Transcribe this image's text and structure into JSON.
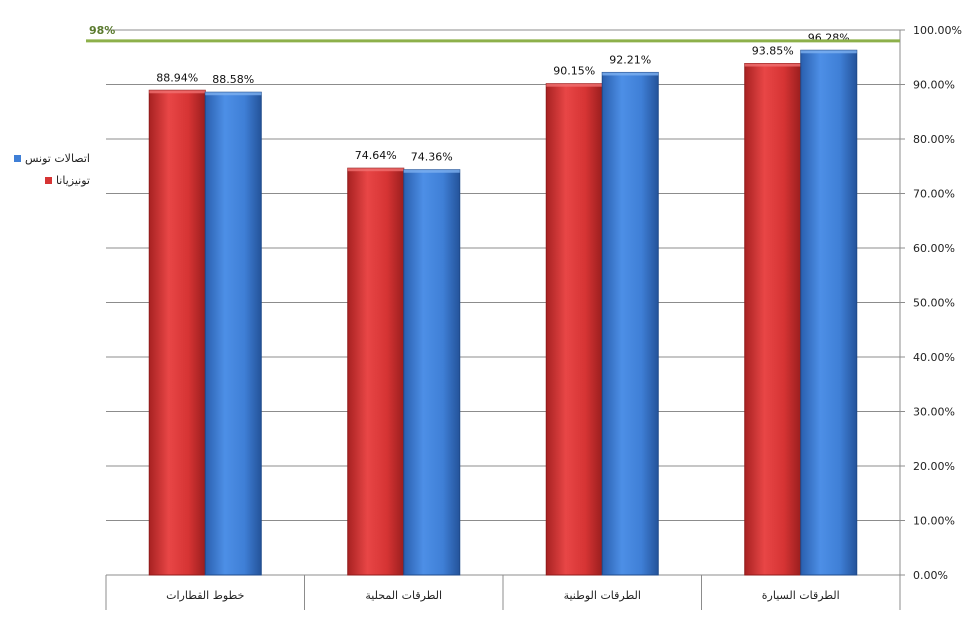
{
  "chart_data": {
    "type": "bar",
    "categories": [
      "خطوط القطارات",
      "الطرقات المحلية",
      "الطرقات الوطنية",
      "الطرقات السيارة"
    ],
    "series": [
      {
        "name": "تونيزيانا",
        "color": "#d63434",
        "values": [
          88.94,
          74.64,
          90.15,
          93.85
        ],
        "labels": [
          "88.94%",
          "74.64%",
          "90.15%",
          "93.85%"
        ]
      },
      {
        "name": "اتصالات تونس",
        "color": "#3f7fd6",
        "values": [
          88.58,
          74.36,
          92.21,
          96.28
        ],
        "labels": [
          "88.58%",
          "74.36%",
          "92.21%",
          "96.28%"
        ]
      }
    ],
    "yaxis": {
      "position": "right",
      "ticks": [
        0,
        10,
        20,
        30,
        40,
        50,
        60,
        70,
        80,
        90,
        100
      ],
      "tick_labels": [
        "0.00%",
        "10.00%",
        "20.00%",
        "30.00%",
        "40.00%",
        "50.00%",
        "60.00%",
        "70.00%",
        "80.00%",
        "90.00%",
        "100.00%"
      ],
      "ylim": [
        0,
        100
      ]
    },
    "target_line": {
      "value": 98,
      "label": "98%",
      "color": "#8db04a"
    },
    "grid": true,
    "legend_placement": "left",
    "legend_order": [
      "اتصالات تونس",
      "تونيزيانا"
    ]
  }
}
